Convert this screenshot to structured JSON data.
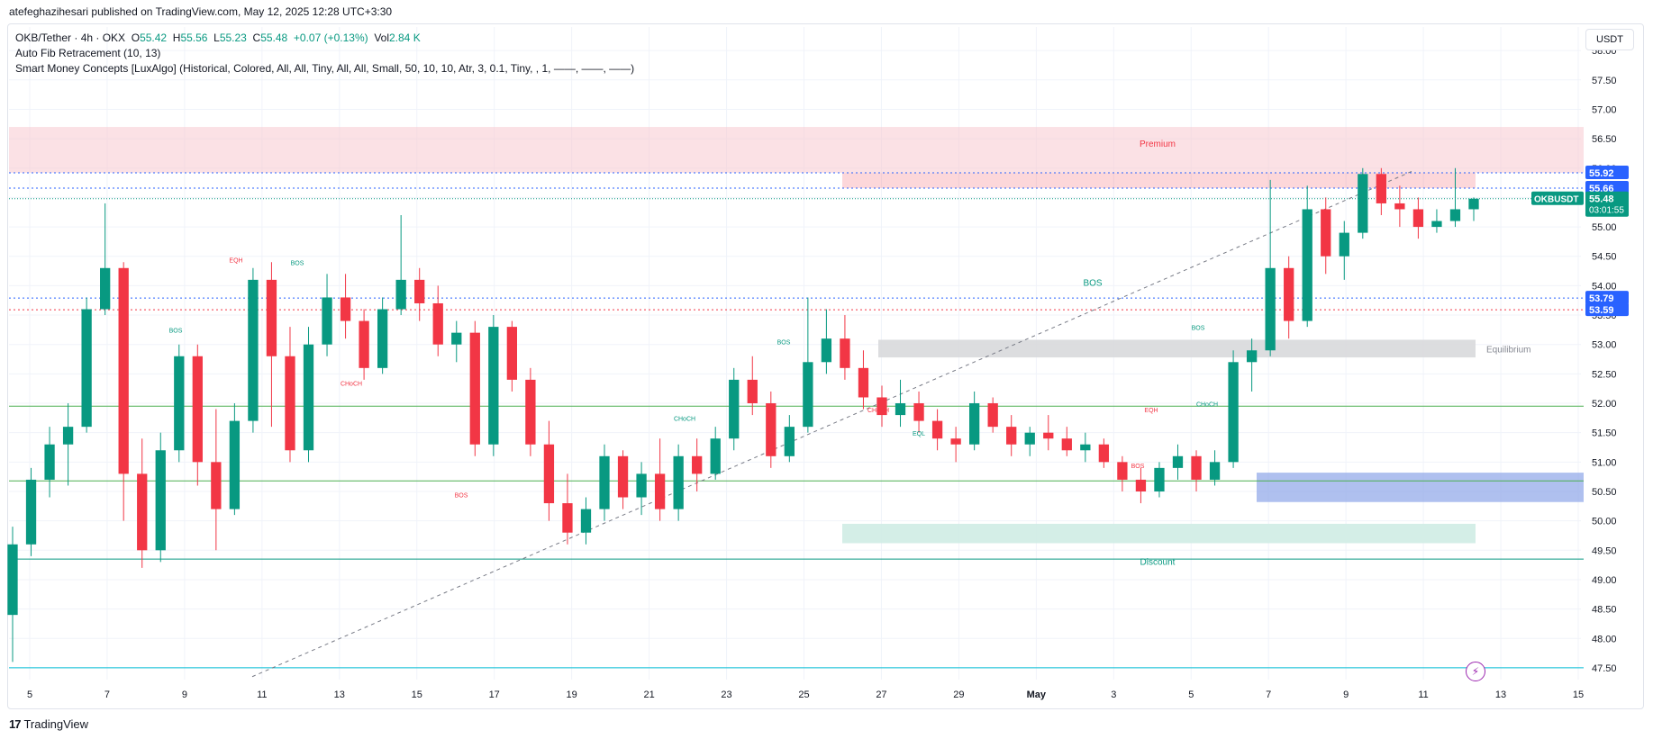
{
  "publisher": "atefeghazihesari published on TradingView.com, May 12, 2025 12:28 UTC+3:30",
  "legend": {
    "symbol": "OKB/Tether · 4h · OKX",
    "o_label": "O",
    "o": "55.42",
    "h_label": "H",
    "h": "55.56",
    "l_label": "L",
    "l": "55.23",
    "c_label": "C",
    "c": "55.48",
    "change": "+0.07 (+0.13%)",
    "vol_label": "Vol",
    "vol": "2.84 K",
    "indicator1": "Auto Fib Retracement (10, 13)",
    "indicator2": "Smart Money Concepts [LuxAlgo] (Historical, Colored, All, All, Tiny, All, All, Small, 50, 10, 10, Atr, 3, 0.1, Tiny, , 1, ——, ——, ——)"
  },
  "currency_button": "USDT",
  "footer_brand": "TradingView",
  "colors": {
    "up": "#089981",
    "down": "#f23645",
    "grid": "#f0f3fa",
    "axis_text": "#131722",
    "premium": "#f7c9cf",
    "discount": "#cfece4",
    "equilibrium": "#d8d9dc",
    "ob_blue": "#94abe9"
  },
  "chart_data": {
    "type": "candlestick",
    "symbol": "OKBUSDT",
    "timeframe": "4h",
    "ylim": [
      47.3,
      58.4
    ],
    "y_ticks": [
      47.5,
      48.0,
      48.5,
      49.0,
      49.5,
      50.0,
      50.5,
      51.0,
      51.5,
      52.0,
      52.5,
      53.0,
      53.5,
      54.0,
      54.5,
      55.0,
      55.5,
      56.0,
      56.5,
      57.0,
      57.5,
      58.0
    ],
    "x_ticks": [
      "5",
      "7",
      "9",
      "11",
      "13",
      "15",
      "17",
      "19",
      "21",
      "23",
      "25",
      "27",
      "29",
      "May",
      "3",
      "5",
      "7",
      "9",
      "11",
      "13",
      "15"
    ],
    "price_labels": [
      {
        "value": "55.92",
        "color": "#2962ff"
      },
      {
        "value": "55.66",
        "color": "#2962ff"
      },
      {
        "value": "55.48",
        "color": "#089981",
        "name": "OKBUSDT",
        "countdown": "03:01:55"
      },
      {
        "value": "53.79",
        "color": "#2962ff"
      },
      {
        "value": "53.59",
        "color": "#2962ff"
      }
    ],
    "zones": [
      {
        "label": "Premium",
        "from": 55.92,
        "to": 56.7
      },
      {
        "label": "Equilibrium",
        "from": 52.78,
        "to": 53.08
      },
      {
        "label": "Discount",
        "from": 49.62,
        "to": 49.95
      },
      {
        "label": "",
        "from": 50.32,
        "to": 50.82
      }
    ],
    "annotations": [
      "BOS",
      "BOS",
      "BOS",
      "BOS",
      "BOS",
      "BOS",
      "BOS",
      "EQH",
      "EQH",
      "EQL",
      "CHoCH",
      "CHoCH",
      "CHoCH",
      "CHoCH"
    ],
    "candles": [
      [
        48.4,
        49.9,
        47.6,
        49.6
      ],
      [
        49.6,
        50.9,
        49.4,
        50.7
      ],
      [
        50.7,
        51.6,
        50.4,
        51.3
      ],
      [
        51.3,
        52.0,
        50.6,
        51.6
      ],
      [
        51.6,
        53.8,
        51.5,
        53.6
      ],
      [
        53.6,
        55.4,
        53.5,
        54.3
      ],
      [
        54.3,
        54.4,
        50.0,
        50.8
      ],
      [
        50.8,
        51.4,
        49.2,
        49.5
      ],
      [
        49.5,
        51.5,
        49.3,
        51.2
      ],
      [
        51.2,
        53.0,
        51.0,
        52.8
      ],
      [
        52.8,
        53.0,
        50.6,
        51.0
      ],
      [
        51.0,
        51.9,
        49.5,
        50.2
      ],
      [
        50.2,
        52.0,
        50.1,
        51.7
      ],
      [
        51.7,
        54.3,
        51.5,
        54.1
      ],
      [
        54.1,
        54.4,
        51.6,
        52.8
      ],
      [
        52.8,
        53.3,
        51.0,
        51.2
      ],
      [
        51.2,
        53.3,
        51.0,
        53.0
      ],
      [
        53.0,
        54.2,
        52.8,
        53.8
      ],
      [
        53.8,
        54.2,
        53.1,
        53.4
      ],
      [
        53.4,
        53.6,
        52.4,
        52.6
      ],
      [
        52.6,
        53.8,
        52.5,
        53.6
      ],
      [
        53.6,
        55.2,
        53.5,
        54.1
      ],
      [
        54.1,
        54.3,
        53.4,
        53.7
      ],
      [
        53.7,
        54.0,
        52.8,
        53.0
      ],
      [
        53.0,
        53.4,
        52.7,
        53.2
      ],
      [
        53.2,
        53.4,
        51.1,
        51.3
      ],
      [
        51.3,
        53.5,
        51.1,
        53.3
      ],
      [
        53.3,
        53.4,
        52.2,
        52.4
      ],
      [
        52.4,
        52.6,
        51.1,
        51.3
      ],
      [
        51.3,
        51.7,
        50.0,
        50.3
      ],
      [
        50.3,
        50.8,
        49.6,
        49.8
      ],
      [
        49.8,
        50.4,
        49.6,
        50.2
      ],
      [
        50.2,
        51.3,
        50.0,
        51.1
      ],
      [
        51.1,
        51.2,
        50.2,
        50.4
      ],
      [
        50.4,
        51.0,
        50.1,
        50.8
      ],
      [
        50.8,
        51.4,
        50.0,
        50.2
      ],
      [
        50.2,
        51.3,
        50.0,
        51.1
      ],
      [
        51.1,
        51.4,
        50.5,
        50.8
      ],
      [
        50.8,
        51.6,
        50.7,
        51.4
      ],
      [
        51.4,
        52.6,
        51.2,
        52.4
      ],
      [
        52.4,
        52.8,
        51.8,
        52.0
      ],
      [
        52.0,
        52.2,
        50.9,
        51.1
      ],
      [
        51.1,
        51.8,
        51.0,
        51.6
      ],
      [
        51.6,
        53.8,
        51.5,
        52.7
      ],
      [
        52.7,
        53.6,
        52.5,
        53.1
      ],
      [
        53.1,
        53.5,
        52.4,
        52.6
      ],
      [
        52.6,
        52.9,
        51.9,
        52.1
      ],
      [
        52.1,
        52.3,
        51.6,
        51.8
      ],
      [
        51.8,
        52.4,
        51.6,
        52.0
      ],
      [
        52.0,
        52.2,
        51.5,
        51.7
      ],
      [
        51.7,
        51.9,
        51.2,
        51.4
      ],
      [
        51.4,
        51.6,
        51.0,
        51.3
      ],
      [
        51.3,
        52.2,
        51.2,
        52.0
      ],
      [
        52.0,
        52.1,
        51.5,
        51.6
      ],
      [
        51.6,
        51.8,
        51.1,
        51.3
      ],
      [
        51.3,
        51.6,
        51.1,
        51.5
      ],
      [
        51.5,
        51.8,
        51.2,
        51.4
      ],
      [
        51.4,
        51.6,
        51.1,
        51.2
      ],
      [
        51.2,
        51.5,
        51.0,
        51.3
      ],
      [
        51.3,
        51.4,
        50.9,
        51.0
      ],
      [
        51.0,
        51.1,
        50.5,
        50.7
      ],
      [
        50.7,
        50.9,
        50.3,
        50.5
      ],
      [
        50.5,
        51.0,
        50.4,
        50.9
      ],
      [
        50.9,
        51.3,
        50.7,
        51.1
      ],
      [
        51.1,
        51.2,
        50.5,
        50.7
      ],
      [
        50.7,
        51.2,
        50.6,
        51.0
      ],
      [
        51.0,
        52.9,
        50.9,
        52.7
      ],
      [
        52.7,
        53.1,
        52.2,
        52.9
      ],
      [
        52.9,
        55.8,
        52.8,
        54.3
      ],
      [
        54.3,
        54.5,
        53.1,
        53.4
      ],
      [
        53.4,
        55.7,
        53.3,
        55.3
      ],
      [
        55.3,
        55.5,
        54.2,
        54.5
      ],
      [
        54.5,
        55.1,
        54.1,
        54.9
      ],
      [
        54.9,
        56.0,
        54.8,
        55.9
      ],
      [
        55.9,
        56.0,
        55.2,
        55.4
      ],
      [
        55.4,
        55.7,
        55.0,
        55.3
      ],
      [
        55.3,
        55.5,
        54.8,
        55.0
      ],
      [
        55.0,
        55.3,
        54.9,
        55.1
      ],
      [
        55.1,
        56.0,
        55.0,
        55.3
      ],
      [
        55.3,
        55.5,
        55.1,
        55.48
      ]
    ]
  }
}
